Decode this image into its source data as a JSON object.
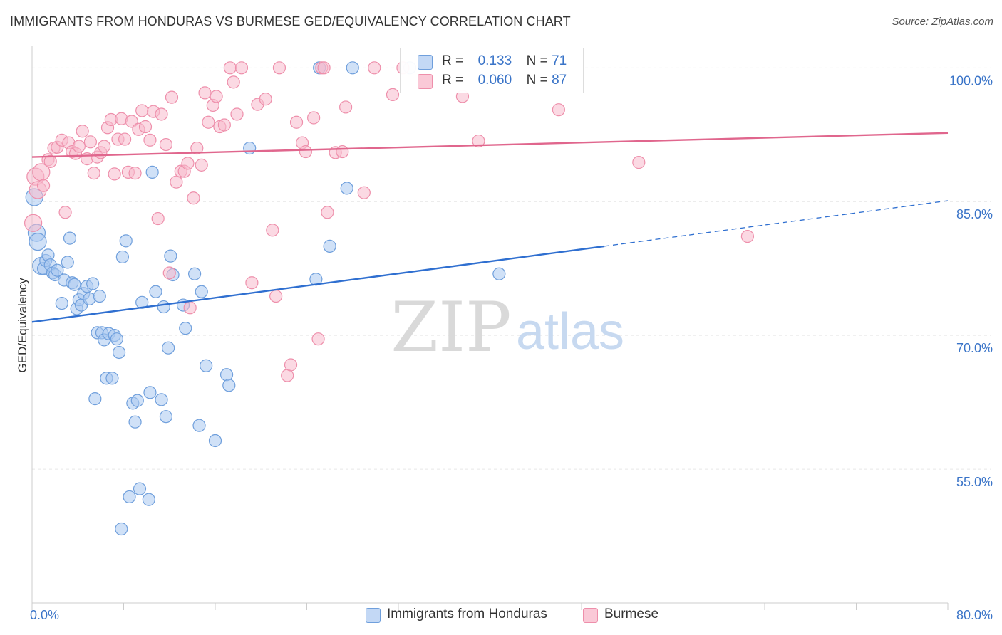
{
  "header": {
    "title": "IMMIGRANTS FROM HONDURAS VS BURMESE GED/EQUIVALENCY CORRELATION CHART",
    "source": "Source: ZipAtlas.com"
  },
  "watermark": {
    "part1": "ZIP",
    "part2": "atlas"
  },
  "legend_top": {
    "rows": [
      {
        "r_label": "R =",
        "r_value": "0.133",
        "n_label": "N =",
        "n_value": "71"
      },
      {
        "r_label": "R =",
        "r_value": "0.060",
        "n_label": "N =",
        "n_value": "87"
      }
    ]
  },
  "colors": {
    "series1_fill": "#aac8f0",
    "series1_stroke": "#6f9fdc",
    "series1_line": "#2f6fd0",
    "series2_fill": "#f7b9cc",
    "series2_stroke": "#ee8fab",
    "series2_line": "#e0668d",
    "tick_label": "#3a74c8",
    "grid": "#e6e6e6"
  },
  "chart_data": {
    "type": "scatter",
    "title": "IMMIGRANTS FROM HONDURAS VS BURMESE GED/EQUIVALENCY CORRELATION CHART",
    "ylabel": "GED/Equivalency",
    "xlabel": "",
    "xlim": [
      0,
      80
    ],
    "ylim": [
      40,
      102.5
    ],
    "x_tick_labels": [
      {
        "value": 0,
        "label": "0.0%"
      },
      {
        "value": 80,
        "label": "80.0%"
      }
    ],
    "y_tick_labels": [
      {
        "value": 100,
        "label": "100.0%"
      },
      {
        "value": 85,
        "label": "85.0%"
      },
      {
        "value": 70,
        "label": "70.0%"
      },
      {
        "value": 55,
        "label": "55.0%"
      }
    ],
    "grid": true,
    "legend_position": "bottom",
    "series": [
      {
        "name": "Immigrants from Honduras",
        "r": 0.133,
        "n": 71,
        "trend": {
          "x": [
            0,
            50
          ],
          "y": [
            71.5,
            80.0
          ]
        },
        "trend_dashed": {
          "x": [
            50,
            80
          ],
          "y": [
            80.0,
            85.1
          ]
        },
        "points": [
          [
            0.2,
            85.5
          ],
          [
            0.4,
            81.5
          ],
          [
            0.5,
            80.5
          ],
          [
            0.8,
            77.8
          ],
          [
            1.0,
            77.5
          ],
          [
            1.2,
            78.4
          ],
          [
            1.4,
            79.0
          ],
          [
            1.6,
            77.9
          ],
          [
            1.8,
            77.0
          ],
          [
            2.0,
            76.8
          ],
          [
            2.2,
            77.3
          ],
          [
            2.6,
            73.6
          ],
          [
            2.8,
            76.2
          ],
          [
            3.1,
            78.2
          ],
          [
            3.3,
            80.9
          ],
          [
            3.5,
            75.9
          ],
          [
            3.7,
            75.7
          ],
          [
            3.9,
            73.0
          ],
          [
            4.1,
            74.0
          ],
          [
            4.3,
            73.4
          ],
          [
            4.5,
            74.7
          ],
          [
            4.8,
            75.5
          ],
          [
            5.0,
            74.1
          ],
          [
            5.3,
            75.8
          ],
          [
            5.5,
            62.9
          ],
          [
            5.7,
            70.3
          ],
          [
            5.9,
            74.4
          ],
          [
            6.1,
            70.3
          ],
          [
            6.3,
            69.5
          ],
          [
            6.5,
            65.2
          ],
          [
            6.7,
            70.2
          ],
          [
            7.0,
            65.2
          ],
          [
            7.2,
            70.0
          ],
          [
            7.4,
            69.6
          ],
          [
            7.6,
            68.1
          ],
          [
            7.8,
            48.3
          ],
          [
            7.9,
            78.8
          ],
          [
            8.2,
            80.6
          ],
          [
            8.5,
            51.9
          ],
          [
            8.8,
            62.4
          ],
          [
            9.0,
            60.3
          ],
          [
            9.2,
            62.7
          ],
          [
            9.4,
            52.8
          ],
          [
            9.6,
            73.7
          ],
          [
            10.2,
            51.6
          ],
          [
            10.3,
            63.6
          ],
          [
            10.5,
            88.3
          ],
          [
            10.8,
            74.9
          ],
          [
            11.3,
            62.8
          ],
          [
            11.5,
            73.2
          ],
          [
            11.7,
            60.9
          ],
          [
            11.9,
            68.6
          ],
          [
            12.1,
            78.9
          ],
          [
            12.3,
            76.8
          ],
          [
            13.2,
            73.4
          ],
          [
            13.4,
            70.8
          ],
          [
            14.2,
            76.9
          ],
          [
            14.6,
            59.9
          ],
          [
            14.8,
            74.9
          ],
          [
            15.2,
            66.6
          ],
          [
            16.0,
            58.2
          ],
          [
            17.0,
            65.6
          ],
          [
            17.2,
            64.4
          ],
          [
            19.0,
            91.0
          ],
          [
            24.8,
            76.3
          ],
          [
            25.1,
            100.0
          ],
          [
            26.0,
            80.0
          ],
          [
            27.5,
            86.5
          ],
          [
            28.0,
            100.0
          ],
          [
            33.0,
            100.0
          ],
          [
            40.8,
            76.9
          ]
        ]
      },
      {
        "name": "Burmese",
        "r": 0.06,
        "n": 87,
        "trend": {
          "x": [
            0,
            80
          ],
          "y": [
            90.0,
            92.7
          ]
        },
        "points": [
          [
            0.1,
            82.6
          ],
          [
            0.3,
            87.8
          ],
          [
            0.5,
            86.3
          ],
          [
            0.8,
            88.3
          ],
          [
            1.0,
            86.8
          ],
          [
            1.4,
            89.7
          ],
          [
            1.6,
            89.5
          ],
          [
            1.9,
            91.0
          ],
          [
            2.2,
            91.1
          ],
          [
            2.6,
            91.9
          ],
          [
            2.9,
            83.8
          ],
          [
            3.2,
            91.6
          ],
          [
            3.5,
            90.6
          ],
          [
            3.8,
            90.4
          ],
          [
            4.1,
            91.2
          ],
          [
            4.4,
            92.9
          ],
          [
            4.8,
            89.8
          ],
          [
            5.1,
            91.7
          ],
          [
            5.4,
            88.2
          ],
          [
            5.7,
            90.0
          ],
          [
            6.0,
            90.5
          ],
          [
            6.3,
            91.2
          ],
          [
            6.6,
            93.3
          ],
          [
            6.9,
            94.2
          ],
          [
            7.2,
            88.1
          ],
          [
            7.5,
            92.0
          ],
          [
            7.8,
            94.3
          ],
          [
            8.1,
            92.0
          ],
          [
            8.4,
            88.3
          ],
          [
            8.7,
            94.0
          ],
          [
            9.0,
            88.2
          ],
          [
            9.3,
            93.1
          ],
          [
            9.6,
            95.2
          ],
          [
            9.9,
            93.4
          ],
          [
            10.3,
            91.9
          ],
          [
            10.6,
            95.1
          ],
          [
            11.0,
            83.1
          ],
          [
            11.3,
            94.8
          ],
          [
            11.7,
            91.4
          ],
          [
            12.0,
            77.0
          ],
          [
            12.2,
            96.7
          ],
          [
            12.6,
            87.2
          ],
          [
            13.0,
            88.4
          ],
          [
            13.3,
            88.4
          ],
          [
            13.6,
            89.3
          ],
          [
            13.8,
            73.1
          ],
          [
            14.1,
            85.4
          ],
          [
            14.4,
            91.0
          ],
          [
            14.8,
            89.1
          ],
          [
            15.1,
            97.2
          ],
          [
            15.4,
            93.9
          ],
          [
            15.8,
            95.8
          ],
          [
            16.1,
            96.8
          ],
          [
            16.4,
            93.4
          ],
          [
            16.8,
            93.6
          ],
          [
            17.3,
            100.0
          ],
          [
            17.6,
            98.4
          ],
          [
            17.9,
            94.8
          ],
          [
            18.3,
            100.0
          ],
          [
            19.2,
            75.9
          ],
          [
            19.7,
            95.9
          ],
          [
            20.4,
            96.5
          ],
          [
            21.0,
            81.8
          ],
          [
            21.3,
            74.4
          ],
          [
            21.6,
            100.0
          ],
          [
            22.3,
            65.5
          ],
          [
            22.6,
            66.7
          ],
          [
            23.1,
            93.9
          ],
          [
            23.6,
            91.6
          ],
          [
            23.9,
            90.6
          ],
          [
            24.6,
            94.4
          ],
          [
            25.0,
            69.6
          ],
          [
            25.3,
            100.0
          ],
          [
            25.5,
            100.0
          ],
          [
            25.8,
            83.8
          ],
          [
            26.5,
            90.5
          ],
          [
            27.1,
            90.6
          ],
          [
            27.4,
            95.6
          ],
          [
            29.0,
            86.0
          ],
          [
            29.9,
            100.0
          ],
          [
            31.5,
            97.0
          ],
          [
            32.4,
            100.0
          ],
          [
            37.6,
            96.8
          ],
          [
            39.0,
            91.8
          ],
          [
            46.0,
            95.3
          ],
          [
            53.0,
            89.4
          ],
          [
            62.5,
            81.1
          ]
        ]
      }
    ]
  }
}
